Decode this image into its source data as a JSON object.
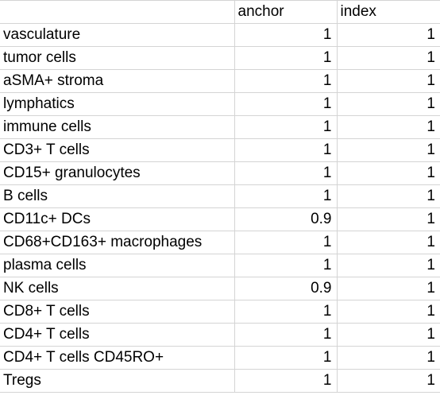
{
  "headers": [
    "",
    "anchor",
    "index"
  ],
  "rows": [
    {
      "label": "vasculature",
      "anchor": "1",
      "index": "1"
    },
    {
      "label": "tumor cells",
      "anchor": "1",
      "index": "1"
    },
    {
      "label": "aSMA+ stroma",
      "anchor": "1",
      "index": "1"
    },
    {
      "label": "lymphatics",
      "anchor": "1",
      "index": "1"
    },
    {
      "label": "immune cells",
      "anchor": "1",
      "index": "1"
    },
    {
      "label": "CD3+ T cells",
      "anchor": "1",
      "index": "1"
    },
    {
      "label": "CD15+ granulocytes",
      "anchor": "1",
      "index": "1"
    },
    {
      "label": "B cells",
      "anchor": "1",
      "index": "1"
    },
    {
      "label": "CD11c+ DCs",
      "anchor": "0.9",
      "index": "1"
    },
    {
      "label": "CD68+CD163+ macrophages",
      "anchor": "1",
      "index": "1"
    },
    {
      "label": "plasma cells",
      "anchor": "1",
      "index": "1"
    },
    {
      "label": "NK cells",
      "anchor": "0.9",
      "index": "1"
    },
    {
      "label": "CD8+ T cells",
      "anchor": "1",
      "index": "1"
    },
    {
      "label": "CD4+ T cells",
      "anchor": "1",
      "index": "1"
    },
    {
      "label": "CD4+ T cells CD45RO+",
      "anchor": "1",
      "index": "1"
    },
    {
      "label": "Tregs",
      "anchor": "1",
      "index": "1"
    }
  ]
}
